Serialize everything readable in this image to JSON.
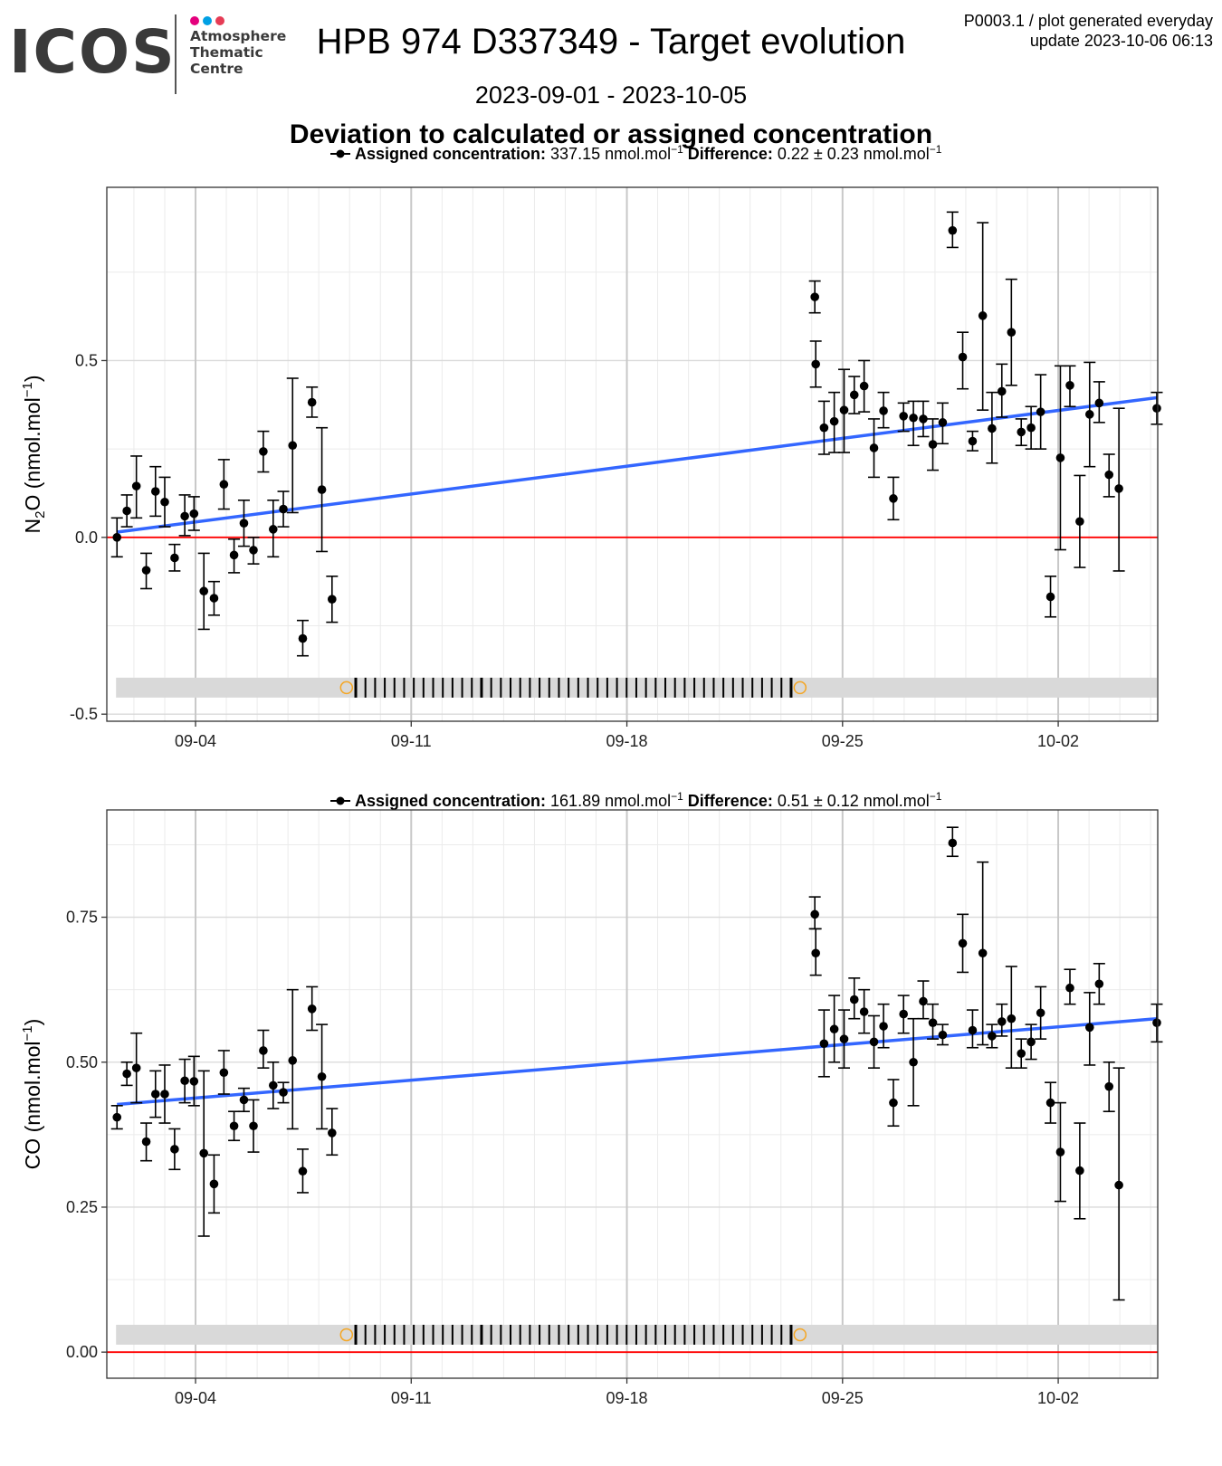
{
  "header": {
    "logo": "ICOS",
    "logo_lines": [
      "Atmosphere",
      "Thematic",
      "Centre"
    ],
    "logo_dot_colors": [
      "#e4007d",
      "#00a0e4",
      "#e63c55"
    ],
    "title": "HPB 974 D337349 - Target evolution",
    "corner_line1": "P0003.1 / plot generated everyday",
    "corner_line2": "update  2023-10-06 06:13",
    "date_range": "2023-09-01 - 2023-10-05",
    "subtitle": "Deviation to calculated or assigned concentration"
  },
  "colors": {
    "trend": "#3366ff",
    "zero_line": "#ff0000",
    "points": "#000000",
    "timeline_band": "#d9d9d9",
    "timeline_marker": "#f5a623"
  },
  "chart_data": [
    {
      "type": "scatter",
      "legend_label": "Assigned concentration:",
      "legend_value": "337.15",
      "legend_diff_label": "Difference:",
      "legend_diff_value": "0.22 ± 0.23",
      "unit": "nmol.mol",
      "unit_exp": "−1",
      "ylabel_species": "N",
      "ylabel_sub": "2",
      "ylabel_species2": "O",
      "ylabel_unit": " (nmol.mol",
      "ylabel_exp": "−1",
      "ylabel_close": ")",
      "ylim": [
        -0.52,
        0.99
      ],
      "y_ticks": [
        -0.5,
        0.0,
        0.5
      ],
      "y_tick_labels": [
        "-0.5",
        "0.0",
        "0.5"
      ],
      "xlim": [
        1.12,
        35.23
      ],
      "x_ticks": [
        4,
        11,
        18,
        25,
        32
      ],
      "x_tick_labels": [
        "09-04",
        "09-11",
        "09-18",
        "09-25",
        "10-02"
      ],
      "grid": true,
      "trend": {
        "x": [
          1.45,
          35.2
        ],
        "y": [
          0.015,
          0.395
        ]
      },
      "zero_line": 0,
      "timeline_y": -0.425,
      "points": [
        {
          "x": 1.45,
          "y": 0.0,
          "lo": -0.055,
          "hi": 0.055
        },
        {
          "x": 1.77,
          "y": 0.075,
          "lo": 0.03,
          "hi": 0.12
        },
        {
          "x": 2.08,
          "y": 0.145,
          "lo": 0.055,
          "hi": 0.23
        },
        {
          "x": 2.4,
          "y": -0.093,
          "lo": -0.145,
          "hi": -0.045
        },
        {
          "x": 2.7,
          "y": 0.13,
          "lo": 0.06,
          "hi": 0.2
        },
        {
          "x": 3.0,
          "y": 0.1,
          "lo": 0.03,
          "hi": 0.17
        },
        {
          "x": 3.32,
          "y": -0.058,
          "lo": -0.095,
          "hi": -0.02
        },
        {
          "x": 3.65,
          "y": 0.06,
          "lo": 0.005,
          "hi": 0.12
        },
        {
          "x": 3.95,
          "y": 0.067,
          "lo": 0.02,
          "hi": 0.115
        },
        {
          "x": 4.27,
          "y": -0.152,
          "lo": -0.26,
          "hi": -0.045
        },
        {
          "x": 4.6,
          "y": -0.172,
          "lo": -0.22,
          "hi": -0.125
        },
        {
          "x": 4.92,
          "y": 0.15,
          "lo": 0.08,
          "hi": 0.22
        },
        {
          "x": 5.25,
          "y": -0.05,
          "lo": -0.1,
          "hi": -0.005
        },
        {
          "x": 5.57,
          "y": 0.04,
          "lo": -0.025,
          "hi": 0.105
        },
        {
          "x": 5.88,
          "y": -0.036,
          "lo": -0.075,
          "hi": 0.0
        },
        {
          "x": 6.2,
          "y": 0.243,
          "lo": 0.185,
          "hi": 0.3
        },
        {
          "x": 6.52,
          "y": 0.023,
          "lo": -0.055,
          "hi": 0.105
        },
        {
          "x": 6.85,
          "y": 0.08,
          "lo": 0.03,
          "hi": 0.13
        },
        {
          "x": 7.15,
          "y": 0.26,
          "lo": 0.07,
          "hi": 0.45
        },
        {
          "x": 7.48,
          "y": -0.286,
          "lo": -0.335,
          "hi": -0.235
        },
        {
          "x": 7.78,
          "y": 0.382,
          "lo": 0.34,
          "hi": 0.425
        },
        {
          "x": 8.1,
          "y": 0.135,
          "lo": -0.04,
          "hi": 0.31
        },
        {
          "x": 8.43,
          "y": -0.175,
          "lo": -0.24,
          "hi": -0.11
        },
        {
          "x": 24.1,
          "y": 0.68,
          "lo": 0.635,
          "hi": 0.725
        },
        {
          "x": 24.13,
          "y": 0.49,
          "lo": 0.425,
          "hi": 0.555
        },
        {
          "x": 24.4,
          "y": 0.31,
          "lo": 0.235,
          "hi": 0.385
        },
        {
          "x": 24.73,
          "y": 0.328,
          "lo": 0.24,
          "hi": 0.41
        },
        {
          "x": 25.05,
          "y": 0.36,
          "lo": 0.24,
          "hi": 0.475
        },
        {
          "x": 25.38,
          "y": 0.403,
          "lo": 0.35,
          "hi": 0.455
        },
        {
          "x": 25.7,
          "y": 0.428,
          "lo": 0.355,
          "hi": 0.5
        },
        {
          "x": 26.02,
          "y": 0.253,
          "lo": 0.17,
          "hi": 0.335
        },
        {
          "x": 26.33,
          "y": 0.358,
          "lo": 0.31,
          "hi": 0.41
        },
        {
          "x": 26.65,
          "y": 0.11,
          "lo": 0.05,
          "hi": 0.17
        },
        {
          "x": 26.98,
          "y": 0.343,
          "lo": 0.3,
          "hi": 0.38
        },
        {
          "x": 27.3,
          "y": 0.338,
          "lo": 0.26,
          "hi": 0.385
        },
        {
          "x": 27.62,
          "y": 0.335,
          "lo": 0.285,
          "hi": 0.385
        },
        {
          "x": 27.93,
          "y": 0.263,
          "lo": 0.19,
          "hi": 0.335
        },
        {
          "x": 28.25,
          "y": 0.325,
          "lo": 0.265,
          "hi": 0.38
        },
        {
          "x": 28.57,
          "y": 0.868,
          "lo": 0.82,
          "hi": 0.92
        },
        {
          "x": 28.9,
          "y": 0.51,
          "lo": 0.42,
          "hi": 0.58
        },
        {
          "x": 29.22,
          "y": 0.272,
          "lo": 0.245,
          "hi": 0.3
        },
        {
          "x": 29.55,
          "y": 0.627,
          "lo": 0.36,
          "hi": 0.89
        },
        {
          "x": 29.85,
          "y": 0.308,
          "lo": 0.21,
          "hi": 0.41
        },
        {
          "x": 30.17,
          "y": 0.413,
          "lo": 0.34,
          "hi": 0.49
        },
        {
          "x": 30.48,
          "y": 0.58,
          "lo": 0.43,
          "hi": 0.73
        },
        {
          "x": 30.8,
          "y": 0.298,
          "lo": 0.26,
          "hi": 0.335
        },
        {
          "x": 31.12,
          "y": 0.31,
          "lo": 0.25,
          "hi": 0.37
        },
        {
          "x": 31.43,
          "y": 0.355,
          "lo": 0.25,
          "hi": 0.46
        },
        {
          "x": 31.75,
          "y": -0.168,
          "lo": -0.225,
          "hi": -0.11
        },
        {
          "x": 32.07,
          "y": 0.225,
          "lo": -0.035,
          "hi": 0.485
        },
        {
          "x": 32.38,
          "y": 0.43,
          "lo": 0.37,
          "hi": 0.485
        },
        {
          "x": 32.7,
          "y": 0.045,
          "lo": -0.085,
          "hi": 0.175
        },
        {
          "x": 33.02,
          "y": 0.348,
          "lo": 0.2,
          "hi": 0.495
        },
        {
          "x": 33.33,
          "y": 0.38,
          "lo": 0.325,
          "hi": 0.44
        },
        {
          "x": 33.65,
          "y": 0.177,
          "lo": 0.115,
          "hi": 0.235
        },
        {
          "x": 33.97,
          "y": 0.138,
          "lo": -0.095,
          "hi": 0.365
        },
        {
          "x": 35.2,
          "y": 0.365,
          "lo": 0.32,
          "hi": 0.41
        }
      ]
    },
    {
      "type": "scatter",
      "legend_label": "Assigned concentration:",
      "legend_value": "161.89",
      "legend_diff_label": "Difference:",
      "legend_diff_value": "0.51 ± 0.12",
      "unit": "nmol.mol",
      "unit_exp": "−1",
      "ylabel_species": "CO",
      "ylabel_sub": "",
      "ylabel_species2": "",
      "ylabel_unit": " (nmol.mol",
      "ylabel_exp": "−1",
      "ylabel_close": ")",
      "ylim": [
        -0.045,
        0.935
      ],
      "y_ticks": [
        0.0,
        0.25,
        0.5,
        0.75
      ],
      "y_tick_labels": [
        "0.00",
        "0.25",
        "0.50",
        "0.75"
      ],
      "xlim": [
        1.12,
        35.23
      ],
      "x_ticks": [
        4,
        11,
        18,
        25,
        32
      ],
      "x_tick_labels": [
        "09-04",
        "09-11",
        "09-18",
        "09-25",
        "10-02"
      ],
      "grid": true,
      "trend": {
        "x": [
          1.45,
          35.2
        ],
        "y": [
          0.427,
          0.575
        ]
      },
      "zero_line": 0,
      "timeline_y": 0.03,
      "points": [
        {
          "x": 1.45,
          "y": 0.405,
          "lo": 0.385,
          "hi": 0.425
        },
        {
          "x": 1.77,
          "y": 0.48,
          "lo": 0.46,
          "hi": 0.5
        },
        {
          "x": 2.08,
          "y": 0.49,
          "lo": 0.43,
          "hi": 0.55
        },
        {
          "x": 2.4,
          "y": 0.363,
          "lo": 0.33,
          "hi": 0.395
        },
        {
          "x": 2.7,
          "y": 0.445,
          "lo": 0.405,
          "hi": 0.485
        },
        {
          "x": 3.0,
          "y": 0.445,
          "lo": 0.395,
          "hi": 0.495
        },
        {
          "x": 3.32,
          "y": 0.35,
          "lo": 0.315,
          "hi": 0.385
        },
        {
          "x": 3.65,
          "y": 0.468,
          "lo": 0.43,
          "hi": 0.505
        },
        {
          "x": 3.95,
          "y": 0.467,
          "lo": 0.425,
          "hi": 0.51
        },
        {
          "x": 4.27,
          "y": 0.343,
          "lo": 0.2,
          "hi": 0.485
        },
        {
          "x": 4.6,
          "y": 0.29,
          "lo": 0.24,
          "hi": 0.34
        },
        {
          "x": 4.92,
          "y": 0.482,
          "lo": 0.445,
          "hi": 0.52
        },
        {
          "x": 5.25,
          "y": 0.39,
          "lo": 0.365,
          "hi": 0.415
        },
        {
          "x": 5.57,
          "y": 0.435,
          "lo": 0.415,
          "hi": 0.455
        },
        {
          "x": 5.88,
          "y": 0.39,
          "lo": 0.345,
          "hi": 0.435
        },
        {
          "x": 6.2,
          "y": 0.52,
          "lo": 0.49,
          "hi": 0.555
        },
        {
          "x": 6.52,
          "y": 0.46,
          "lo": 0.42,
          "hi": 0.5
        },
        {
          "x": 6.85,
          "y": 0.448,
          "lo": 0.43,
          "hi": 0.465
        },
        {
          "x": 7.15,
          "y": 0.503,
          "lo": 0.385,
          "hi": 0.625
        },
        {
          "x": 7.48,
          "y": 0.312,
          "lo": 0.275,
          "hi": 0.35
        },
        {
          "x": 7.78,
          "y": 0.592,
          "lo": 0.555,
          "hi": 0.63
        },
        {
          "x": 8.1,
          "y": 0.475,
          "lo": 0.385,
          "hi": 0.565
        },
        {
          "x": 8.43,
          "y": 0.378,
          "lo": 0.34,
          "hi": 0.42
        },
        {
          "x": 24.1,
          "y": 0.755,
          "lo": 0.73,
          "hi": 0.785
        },
        {
          "x": 24.13,
          "y": 0.688,
          "lo": 0.65,
          "hi": 0.73
        },
        {
          "x": 24.4,
          "y": 0.532,
          "lo": 0.475,
          "hi": 0.59
        },
        {
          "x": 24.73,
          "y": 0.557,
          "lo": 0.5,
          "hi": 0.615
        },
        {
          "x": 25.05,
          "y": 0.54,
          "lo": 0.49,
          "hi": 0.59
        },
        {
          "x": 25.38,
          "y": 0.608,
          "lo": 0.575,
          "hi": 0.645
        },
        {
          "x": 25.7,
          "y": 0.587,
          "lo": 0.55,
          "hi": 0.625
        },
        {
          "x": 26.02,
          "y": 0.535,
          "lo": 0.49,
          "hi": 0.58
        },
        {
          "x": 26.33,
          "y": 0.562,
          "lo": 0.525,
          "hi": 0.6
        },
        {
          "x": 26.65,
          "y": 0.43,
          "lo": 0.39,
          "hi": 0.47
        },
        {
          "x": 26.98,
          "y": 0.583,
          "lo": 0.55,
          "hi": 0.615
        },
        {
          "x": 27.3,
          "y": 0.5,
          "lo": 0.425,
          "hi": 0.575
        },
        {
          "x": 27.62,
          "y": 0.605,
          "lo": 0.575,
          "hi": 0.64
        },
        {
          "x": 27.93,
          "y": 0.568,
          "lo": 0.54,
          "hi": 0.6
        },
        {
          "x": 28.25,
          "y": 0.547,
          "lo": 0.53,
          "hi": 0.565
        },
        {
          "x": 28.57,
          "y": 0.878,
          "lo": 0.855,
          "hi": 0.905
        },
        {
          "x": 28.9,
          "y": 0.705,
          "lo": 0.655,
          "hi": 0.755
        },
        {
          "x": 29.22,
          "y": 0.555,
          "lo": 0.525,
          "hi": 0.59
        },
        {
          "x": 29.55,
          "y": 0.688,
          "lo": 0.53,
          "hi": 0.845
        },
        {
          "x": 29.85,
          "y": 0.545,
          "lo": 0.525,
          "hi": 0.565
        },
        {
          "x": 30.17,
          "y": 0.57,
          "lo": 0.545,
          "hi": 0.6
        },
        {
          "x": 30.48,
          "y": 0.575,
          "lo": 0.49,
          "hi": 0.665
        },
        {
          "x": 30.8,
          "y": 0.515,
          "lo": 0.49,
          "hi": 0.54
        },
        {
          "x": 31.12,
          "y": 0.535,
          "lo": 0.505,
          "hi": 0.565
        },
        {
          "x": 31.43,
          "y": 0.585,
          "lo": 0.54,
          "hi": 0.63
        },
        {
          "x": 31.75,
          "y": 0.43,
          "lo": 0.395,
          "hi": 0.465
        },
        {
          "x": 32.07,
          "y": 0.345,
          "lo": 0.26,
          "hi": 0.43
        },
        {
          "x": 32.38,
          "y": 0.628,
          "lo": 0.6,
          "hi": 0.66
        },
        {
          "x": 32.7,
          "y": 0.313,
          "lo": 0.23,
          "hi": 0.395
        },
        {
          "x": 33.02,
          "y": 0.56,
          "lo": 0.495,
          "hi": 0.62
        },
        {
          "x": 33.33,
          "y": 0.635,
          "lo": 0.6,
          "hi": 0.67
        },
        {
          "x": 33.65,
          "y": 0.458,
          "lo": 0.415,
          "hi": 0.5
        },
        {
          "x": 33.97,
          "y": 0.288,
          "lo": 0.09,
          "hi": 0.49
        },
        {
          "x": 35.2,
          "y": 0.568,
          "lo": 0.535,
          "hi": 0.6
        }
      ]
    }
  ]
}
